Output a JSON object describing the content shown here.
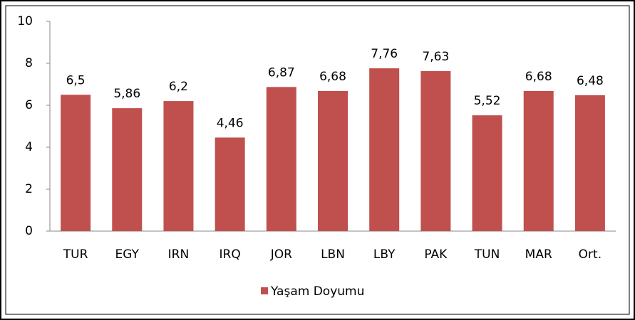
{
  "chart_data": {
    "type": "bar",
    "categories": [
      "TUR",
      "EGY",
      "IRN",
      "IRQ",
      "JOR",
      "LBN",
      "LBY",
      "PAK",
      "TUN",
      "MAR",
      "Ort."
    ],
    "series": [
      {
        "name": "Yaşam Doyumu",
        "color": "#c0504d",
        "values": [
          6.5,
          5.86,
          6.2,
          4.46,
          6.87,
          6.68,
          7.76,
          7.63,
          5.52,
          6.68,
          6.48
        ],
        "value_labels": [
          "6,5",
          "5,86",
          "6,2",
          "4,46",
          "6,87",
          "6,68",
          "7,76",
          "7,63",
          "5,52",
          "6,68",
          "6,48"
        ]
      }
    ],
    "ylim": [
      0,
      10
    ],
    "yticks": [
      0,
      2,
      4,
      6,
      8,
      10
    ],
    "grid": false,
    "legend": "bottom"
  }
}
